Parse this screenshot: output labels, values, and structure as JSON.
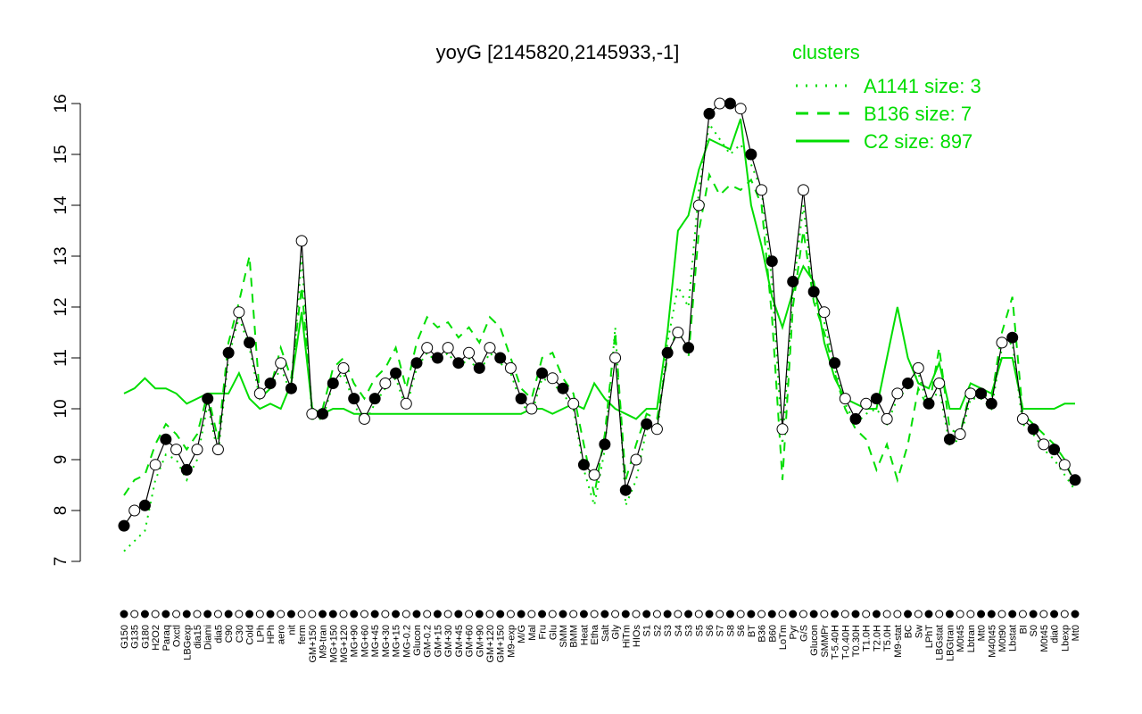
{
  "chart_data": {
    "type": "line",
    "title": "yoyG [2145820,2145933,-1]",
    "xlabel": "",
    "ylabel": "",
    "ylim": [
      7,
      16
    ],
    "yticks": [
      7,
      8,
      9,
      10,
      11,
      12,
      13,
      14,
      15,
      16
    ],
    "grid": false,
    "legend": {
      "title": "clusters",
      "placement": "top-right",
      "entries": [
        {
          "name": "A1141 size: 3",
          "style": "dotted"
        },
        {
          "name": "B136 size: 7",
          "style": "dashed"
        },
        {
          "name": "C2 size: 897",
          "style": "solid"
        }
      ]
    },
    "colors": {
      "gene": "#000000",
      "cluster": "#00dd00"
    },
    "points": [
      {
        "label": "G150",
        "value": 7.7,
        "c2": 10.3,
        "b136": 8.3,
        "a1141": 7.2,
        "filled": true
      },
      {
        "label": "G135",
        "value": 8.0,
        "c2": 10.4,
        "b136": 8.6,
        "a1141": 7.4,
        "filled": false
      },
      {
        "label": "G180",
        "value": 8.1,
        "c2": 10.6,
        "b136": 8.7,
        "a1141": 7.6,
        "filled": true
      },
      {
        "label": "H2O2",
        "value": 8.9,
        "c2": 10.4,
        "b136": 9.3,
        "a1141": 8.6,
        "filled": false
      },
      {
        "label": "Paraq",
        "value": 9.4,
        "c2": 10.4,
        "b136": 9.7,
        "a1141": 9.1,
        "filled": true
      },
      {
        "label": "Oxctl",
        "value": 9.2,
        "c2": 10.3,
        "b136": 9.5,
        "a1141": 9.0,
        "filled": false
      },
      {
        "label": "LBGexp",
        "value": 8.8,
        "c2": 10.1,
        "b136": 9.2,
        "a1141": 8.6,
        "filled": true
      },
      {
        "label": "dia15",
        "value": 9.2,
        "c2": 10.2,
        "b136": 9.5,
        "a1141": 9.0,
        "filled": false
      },
      {
        "label": "Diami",
        "value": 10.2,
        "c2": 10.3,
        "b136": 10.3,
        "a1141": 10.1,
        "filled": true
      },
      {
        "label": "dia5",
        "value": 9.2,
        "c2": 10.3,
        "b136": 9.4,
        "a1141": 9.1,
        "filled": false
      },
      {
        "label": "C90",
        "value": 11.1,
        "c2": 10.3,
        "b136": 11.3,
        "a1141": 11.0,
        "filled": true
      },
      {
        "label": "C30",
        "value": 11.9,
        "c2": 10.7,
        "b136": 12.1,
        "a1141": 11.8,
        "filled": false
      },
      {
        "label": "Cold",
        "value": 11.3,
        "c2": 10.2,
        "b136": 13.0,
        "a1141": 11.2,
        "filled": true
      },
      {
        "label": "LPh",
        "value": 10.3,
        "c2": 10.0,
        "b136": 10.2,
        "a1141": 10.2,
        "filled": false
      },
      {
        "label": "HPh",
        "value": 10.5,
        "c2": 10.1,
        "b136": 10.4,
        "a1141": 10.4,
        "filled": true
      },
      {
        "label": "aero",
        "value": 10.9,
        "c2": 10.0,
        "b136": 11.2,
        "a1141": 10.8,
        "filled": false
      },
      {
        "label": "nit",
        "value": 10.4,
        "c2": 10.5,
        "b136": 10.6,
        "a1141": 10.3,
        "filled": true
      },
      {
        "label": "ferm",
        "value": 13.3,
        "c2": 11.9,
        "b136": 12.4,
        "a1141": 13.0,
        "filled": false
      },
      {
        "label": "GM+150",
        "value": 9.9,
        "c2": 10.0,
        "b136": 10.0,
        "a1141": 9.8,
        "filled": false
      },
      {
        "label": "M9-tran",
        "value": 9.9,
        "c2": 9.9,
        "b136": 10.0,
        "a1141": 9.8,
        "filled": true
      },
      {
        "label": "MG+150",
        "value": 10.5,
        "c2": 10.0,
        "b136": 10.8,
        "a1141": 10.5,
        "filled": true
      },
      {
        "label": "MG+120",
        "value": 10.8,
        "c2": 10.0,
        "b136": 11.0,
        "a1141": 10.7,
        "filled": false
      },
      {
        "label": "MG+90",
        "value": 10.2,
        "c2": 9.9,
        "b136": 10.5,
        "a1141": 10.1,
        "filled": true
      },
      {
        "label": "MG+60",
        "value": 9.8,
        "c2": 9.9,
        "b136": 10.2,
        "a1141": 9.7,
        "filled": false
      },
      {
        "label": "MG+45",
        "value": 10.2,
        "c2": 9.9,
        "b136": 10.6,
        "a1141": 10.1,
        "filled": true
      },
      {
        "label": "MG+30",
        "value": 10.5,
        "c2": 9.9,
        "b136": 10.8,
        "a1141": 10.4,
        "filled": false
      },
      {
        "label": "MG+15",
        "value": 10.7,
        "c2": 9.9,
        "b136": 11.2,
        "a1141": 10.6,
        "filled": true
      },
      {
        "label": "MG-0.2",
        "value": 10.1,
        "c2": 9.9,
        "b136": 10.4,
        "a1141": 10.0,
        "filled": false
      },
      {
        "label": "Glucon",
        "value": 10.9,
        "c2": 9.9,
        "b136": 11.3,
        "a1141": 10.8,
        "filled": true
      },
      {
        "label": "GM-0.2",
        "value": 11.2,
        "c2": 9.9,
        "b136": 11.8,
        "a1141": 11.1,
        "filled": false
      },
      {
        "label": "GM+15",
        "value": 11.0,
        "c2": 9.9,
        "b136": 11.6,
        "a1141": 10.9,
        "filled": true
      },
      {
        "label": "GM+30",
        "value": 11.2,
        "c2": 9.9,
        "b136": 11.7,
        "a1141": 11.1,
        "filled": false
      },
      {
        "label": "GM+45",
        "value": 10.9,
        "c2": 9.9,
        "b136": 11.4,
        "a1141": 10.8,
        "filled": true
      },
      {
        "label": "GM+60",
        "value": 11.1,
        "c2": 9.9,
        "b136": 11.6,
        "a1141": 11.0,
        "filled": false
      },
      {
        "label": "GM+90",
        "value": 10.8,
        "c2": 9.9,
        "b136": 11.3,
        "a1141": 10.7,
        "filled": true
      },
      {
        "label": "GM+120",
        "value": 11.2,
        "c2": 9.9,
        "b136": 11.8,
        "a1141": 11.1,
        "filled": false
      },
      {
        "label": "GM+150",
        "value": 11.0,
        "c2": 9.9,
        "b136": 11.6,
        "a1141": 10.9,
        "filled": true
      },
      {
        "label": "M9-exp",
        "value": 10.8,
        "c2": 9.9,
        "b136": 11.0,
        "a1141": 10.7,
        "filled": false
      },
      {
        "label": "M/G",
        "value": 10.2,
        "c2": 9.9,
        "b136": 10.4,
        "a1141": 10.1,
        "filled": true
      },
      {
        "label": "Mal",
        "value": 10.0,
        "c2": 10.0,
        "b136": 10.2,
        "a1141": 9.9,
        "filled": false
      },
      {
        "label": "Fru",
        "value": 10.7,
        "c2": 10.0,
        "b136": 11.0,
        "a1141": 10.6,
        "filled": true
      },
      {
        "label": "Glu",
        "value": 10.6,
        "c2": 9.9,
        "b136": 11.1,
        "a1141": 10.5,
        "filled": false
      },
      {
        "label": "SMM",
        "value": 10.4,
        "c2": 10.0,
        "b136": 10.6,
        "a1141": 10.3,
        "filled": true
      },
      {
        "label": "BMM",
        "value": 10.1,
        "c2": 10.1,
        "b136": 10.3,
        "a1141": 10.0,
        "filled": false
      },
      {
        "label": "Heat",
        "value": 8.9,
        "c2": 10.0,
        "b136": 9.3,
        "a1141": 8.8,
        "filled": true
      },
      {
        "label": "Etha",
        "value": 8.7,
        "c2": 10.5,
        "b136": 8.3,
        "a1141": 8.1,
        "filled": false
      },
      {
        "label": "Salt",
        "value": 9.3,
        "c2": 10.2,
        "b136": 9.5,
        "a1141": 9.2,
        "filled": true
      },
      {
        "label": "Gly",
        "value": 11.0,
        "c2": 10.0,
        "b136": 11.5,
        "a1141": 11.6,
        "filled": false
      },
      {
        "label": "HiTm",
        "value": 8.4,
        "c2": 9.9,
        "b136": 8.6,
        "a1141": 8.1,
        "filled": true
      },
      {
        "label": "HIOs",
        "value": 9.0,
        "c2": 9.8,
        "b136": 9.3,
        "a1141": 8.6,
        "filled": false
      },
      {
        "label": "S1",
        "value": 9.7,
        "c2": 10.0,
        "b136": 9.9,
        "a1141": 9.6,
        "filled": true
      },
      {
        "label": "S2",
        "value": 9.6,
        "c2": 10.0,
        "b136": 9.8,
        "a1141": 9.5,
        "filled": false
      },
      {
        "label": "S3",
        "value": 11.1,
        "c2": 11.5,
        "b136": 11.0,
        "a1141": 11.3,
        "filled": true
      },
      {
        "label": "S4",
        "value": 11.5,
        "c2": 13.5,
        "b136": 11.6,
        "a1141": 12.4,
        "filled": false
      },
      {
        "label": "S3",
        "value": 11.2,
        "c2": 13.8,
        "b136": 11.0,
        "a1141": 12.0,
        "filled": true
      },
      {
        "label": "S5",
        "value": 14.0,
        "c2": 14.7,
        "b136": 13.5,
        "a1141": 14.3,
        "filled": false
      },
      {
        "label": "S6",
        "value": 15.8,
        "c2": 15.3,
        "b136": 14.6,
        "a1141": 15.6,
        "filled": true
      },
      {
        "label": "S7",
        "value": 16.0,
        "c2": 15.2,
        "b136": 14.2,
        "a1141": 15.3,
        "filled": false
      },
      {
        "label": "S8",
        "value": 16.0,
        "c2": 15.1,
        "b136": 14.4,
        "a1141": 15.0,
        "filled": true
      },
      {
        "label": "S6",
        "value": 15.9,
        "c2": 15.7,
        "b136": 14.3,
        "a1141": 15.2,
        "filled": false
      },
      {
        "label": "BT",
        "value": 15.0,
        "c2": 14.0,
        "b136": 14.5,
        "a1141": 14.8,
        "filled": true
      },
      {
        "label": "B36",
        "value": 14.3,
        "c2": 13.2,
        "b136": 14.0,
        "a1141": 14.3,
        "filled": false
      },
      {
        "label": "B60",
        "value": 12.9,
        "c2": 12.2,
        "b136": 11.8,
        "a1141": 12.5,
        "filled": true
      },
      {
        "label": "LoTm",
        "value": 9.6,
        "c2": 11.6,
        "b136": 8.6,
        "a1141": 9.3,
        "filled": false
      },
      {
        "label": "Pyr",
        "value": 12.5,
        "c2": 12.3,
        "b136": 12.0,
        "a1141": 12.3,
        "filled": true
      },
      {
        "label": "G/S",
        "value": 14.3,
        "c2": 12.8,
        "b136": 13.5,
        "a1141": 14.0,
        "filled": false
      },
      {
        "label": "Glucon",
        "value": 12.3,
        "c2": 12.5,
        "b136": 12.1,
        "a1141": 12.2,
        "filled": true
      },
      {
        "label": "SMMPr",
        "value": 11.9,
        "c2": 11.3,
        "b136": 11.5,
        "a1141": 11.7,
        "filled": false
      },
      {
        "label": "T-5.40H",
        "value": 10.9,
        "c2": 10.6,
        "b136": 10.7,
        "a1141": 10.8,
        "filled": true
      },
      {
        "label": "T-0.40H",
        "value": 10.2,
        "c2": 10.2,
        "b136": 10.0,
        "a1141": 10.1,
        "filled": false
      },
      {
        "label": "T0.30H",
        "value": 9.8,
        "c2": 10.1,
        "b136": 9.6,
        "a1141": 9.7,
        "filled": true
      },
      {
        "label": "T1.0H",
        "value": 10.1,
        "c2": 10.0,
        "b136": 9.4,
        "a1141": 9.9,
        "filled": false
      },
      {
        "label": "T2.0H",
        "value": 10.2,
        "c2": 10.0,
        "b136": 8.8,
        "a1141": 10.0,
        "filled": true
      },
      {
        "label": "T5.0H",
        "value": 9.8,
        "c2": 11.0,
        "b136": 9.3,
        "a1141": 9.7,
        "filled": false
      },
      {
        "label": "M9-stat",
        "value": 10.3,
        "c2": 12.0,
        "b136": 8.6,
        "a1141": 10.2,
        "filled": false
      },
      {
        "label": "BC",
        "value": 10.5,
        "c2": 11.0,
        "b136": 9.3,
        "a1141": 10.4,
        "filled": true
      },
      {
        "label": "Sw",
        "value": 10.8,
        "c2": 10.5,
        "b136": 10.4,
        "a1141": 10.7,
        "filled": false
      },
      {
        "label": "LPhT",
        "value": 10.1,
        "c2": 10.4,
        "b136": 10.0,
        "a1141": 10.0,
        "filled": true
      },
      {
        "label": "LBGstat",
        "value": 10.5,
        "c2": 10.9,
        "b136": 11.2,
        "a1141": 10.4,
        "filled": false
      },
      {
        "label": "LBGtran",
        "value": 9.4,
        "c2": 10.0,
        "b136": 9.6,
        "a1141": 9.3,
        "filled": true
      },
      {
        "label": "M0t45",
        "value": 9.5,
        "c2": 10.0,
        "b136": 9.5,
        "a1141": 9.4,
        "filled": false
      },
      {
        "label": "Lbtran",
        "value": 10.3,
        "c2": 10.5,
        "b136": 10.4,
        "a1141": 10.2,
        "filled": false
      },
      {
        "label": "Mt0",
        "value": 10.3,
        "c2": 10.4,
        "b136": 10.3,
        "a1141": 10.2,
        "filled": true
      },
      {
        "label": "M40t45",
        "value": 10.1,
        "c2": 10.3,
        "b136": 10.2,
        "a1141": 10.0,
        "filled": true
      },
      {
        "label": "M0t90",
        "value": 11.3,
        "c2": 11.0,
        "b136": 11.5,
        "a1141": 11.2,
        "filled": false
      },
      {
        "label": "Lbstat",
        "value": 11.4,
        "c2": 11.0,
        "b136": 12.2,
        "a1141": 11.3,
        "filled": true
      },
      {
        "label": "BI",
        "value": 9.8,
        "c2": 10.0,
        "b136": 9.9,
        "a1141": 9.7,
        "filled": false
      },
      {
        "label": "S0",
        "value": 9.6,
        "c2": 10.0,
        "b136": 9.7,
        "a1141": 9.5,
        "filled": true
      },
      {
        "label": "M0t45",
        "value": 9.3,
        "c2": 10.0,
        "b136": 9.5,
        "a1141": 9.2,
        "filled": false
      },
      {
        "label": "dia0",
        "value": 9.2,
        "c2": 10.0,
        "b136": 9.3,
        "a1141": 9.0,
        "filled": true
      },
      {
        "label": "Lbexp",
        "value": 8.9,
        "c2": 10.1,
        "b136": 9.0,
        "a1141": 8.7,
        "filled": false
      },
      {
        "label": "Mt0",
        "value": 8.6,
        "c2": 10.1,
        "b136": 8.5,
        "a1141": 8.4,
        "filled": true
      }
    ]
  }
}
